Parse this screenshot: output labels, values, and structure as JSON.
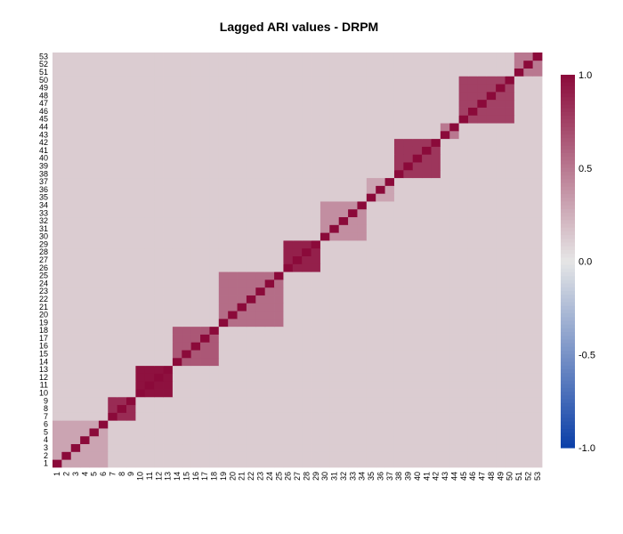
{
  "chart_data": {
    "type": "heatmap",
    "title": "Lagged ARI values - DRPM",
    "n": 53,
    "x_labels": [
      "1",
      "2",
      "3",
      "4",
      "5",
      "6",
      "7",
      "8",
      "9",
      "10",
      "11",
      "12",
      "13",
      "14",
      "15",
      "16",
      "17",
      "18",
      "19",
      "20",
      "21",
      "22",
      "23",
      "24",
      "25",
      "26",
      "27",
      "28",
      "29",
      "30",
      "31",
      "32",
      "33",
      "34",
      "35",
      "36",
      "37",
      "38",
      "39",
      "40",
      "41",
      "42",
      "43",
      "44",
      "45",
      "46",
      "47",
      "48",
      "49",
      "50",
      "51",
      "52",
      "53"
    ],
    "y_labels": [
      "1",
      "2",
      "3",
      "4",
      "5",
      "6",
      "7",
      "8",
      "9",
      "10",
      "11",
      "12",
      "13",
      "14",
      "15",
      "16",
      "17",
      "18",
      "19",
      "20",
      "21",
      "22",
      "23",
      "24",
      "25",
      "26",
      "27",
      "28",
      "29",
      "30",
      "31",
      "32",
      "33",
      "34",
      "35",
      "36",
      "37",
      "38",
      "39",
      "40",
      "41",
      "42",
      "43",
      "44",
      "45",
      "46",
      "47",
      "48",
      "49",
      "50",
      "51",
      "52",
      "53"
    ],
    "diagonal_value": 1.0,
    "blocks": [
      {
        "rows": [
          1,
          6
        ],
        "value": 0.3
      },
      {
        "rows": [
          7,
          9
        ],
        "value": 0.85
      },
      {
        "rows": [
          10,
          13
        ],
        "value": 0.97
      },
      {
        "rows": [
          14,
          18
        ],
        "value": 0.65
      },
      {
        "rows": [
          19,
          25
        ],
        "value": 0.55
      },
      {
        "rows": [
          26,
          29
        ],
        "value": 0.9
      },
      {
        "rows": [
          30,
          34
        ],
        "value": 0.4
      },
      {
        "rows": [
          35,
          37
        ],
        "value": 0.3
      },
      {
        "rows": [
          38,
          42
        ],
        "value": 0.8
      },
      {
        "rows": [
          43,
          44
        ],
        "value": 0.5
      },
      {
        "rows": [
          45,
          50
        ],
        "value": 0.75
      },
      {
        "rows": [
          51,
          53
        ],
        "value": 0.5
      }
    ],
    "background_value": 0.12,
    "colorbar": {
      "min": -1.0,
      "max": 1.0,
      "ticks": [
        "1.0",
        "0.5",
        "0.0",
        "-0.5",
        "-1.0"
      ],
      "tick_values": [
        1.0,
        0.5,
        0.0,
        -0.5,
        -1.0
      ],
      "colors": {
        "low": "#0b3fa8",
        "mid": "#e6e6e6",
        "high": "#8b0a3a"
      }
    },
    "legend": "right"
  }
}
